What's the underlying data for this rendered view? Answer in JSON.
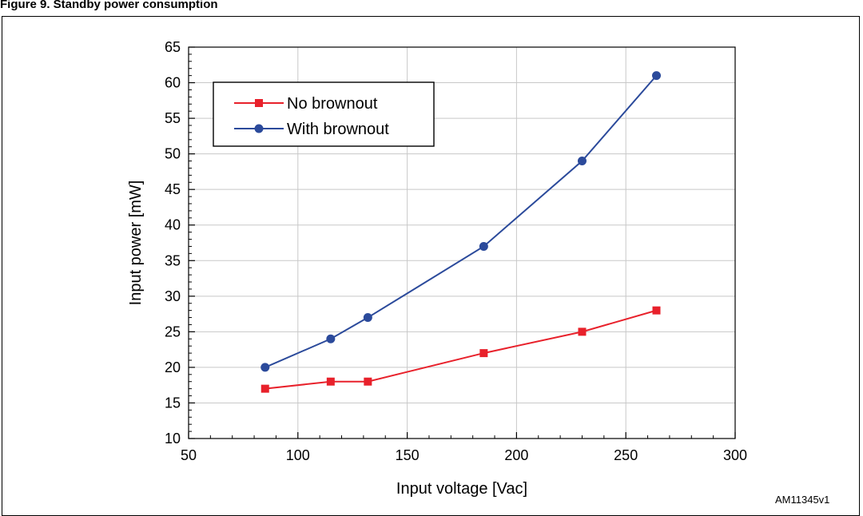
{
  "figure": {
    "title": "Figure 9. Standby power consumption",
    "id_label": "AM11345v1"
  },
  "chart_data": {
    "type": "line",
    "title": "",
    "xlabel": "Input voltage [Vac]",
    "ylabel": "Input power [mW]",
    "xlim": [
      50,
      300
    ],
    "ylim": [
      10,
      65
    ],
    "xticks": [
      50,
      100,
      150,
      200,
      250,
      300
    ],
    "yticks": [
      10,
      15,
      20,
      25,
      30,
      35,
      40,
      45,
      50,
      55,
      60,
      65
    ],
    "grid": true,
    "legend_position": "top-left",
    "series": [
      {
        "name": "No brownout",
        "color": "#e8212b",
        "marker": "square",
        "x": [
          85,
          115,
          132,
          185,
          230,
          264
        ],
        "y": [
          17,
          18,
          18,
          22,
          25,
          28
        ]
      },
      {
        "name": "With brownout",
        "color": "#2b4a9b",
        "marker": "circle",
        "x": [
          85,
          115,
          132,
          185,
          230,
          264
        ],
        "y": [
          20,
          24,
          27,
          37,
          49,
          61
        ]
      }
    ]
  }
}
